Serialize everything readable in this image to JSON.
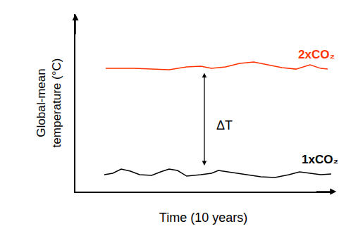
{
  "chart_data": {
    "type": "line",
    "x_label": "Time (10 years)",
    "y_label": "Global-mean\ntemperature (°C)",
    "xlim": [
      0,
      10
    ],
    "ylim": [
      0,
      100
    ],
    "tick_labels": false,
    "grid": false,
    "annotations": [
      "ΔT"
    ],
    "series": [
      {
        "name": "2xCO₂",
        "color": "#ff3300",
        "x": [
          1.18,
          2.29,
          2.98,
          3.66,
          4.35,
          4.9,
          5.32,
          5.87,
          6.42,
          6.97,
          7.52,
          8.07,
          8.62,
          9.17,
          9.59,
          9.86
        ],
        "values": [
          69.4,
          69.4,
          69.0,
          68.7,
          70.2,
          70.6,
          69.4,
          70.2,
          72.2,
          73.0,
          71.4,
          69.8,
          69.0,
          71.4,
          69.4,
          69.0
        ]
      },
      {
        "name": "1xCO₂",
        "color": "#000000",
        "x": [
          1.13,
          1.46,
          1.79,
          2.15,
          2.51,
          2.98,
          3.33,
          3.66,
          3.99,
          4.35,
          4.9,
          5.32,
          5.59,
          6.14,
          6.69,
          7.25,
          7.8,
          8.35,
          8.76,
          9.17,
          9.59,
          10.0
        ],
        "values": [
          9.5,
          10.3,
          12.7,
          11.5,
          9.5,
          9.1,
          11.1,
          12.7,
          11.9,
          8.7,
          9.5,
          10.3,
          11.9,
          10.7,
          9.5,
          8.3,
          7.9,
          9.5,
          11.1,
          10.3,
          9.5,
          9.9
        ]
      }
    ]
  }
}
